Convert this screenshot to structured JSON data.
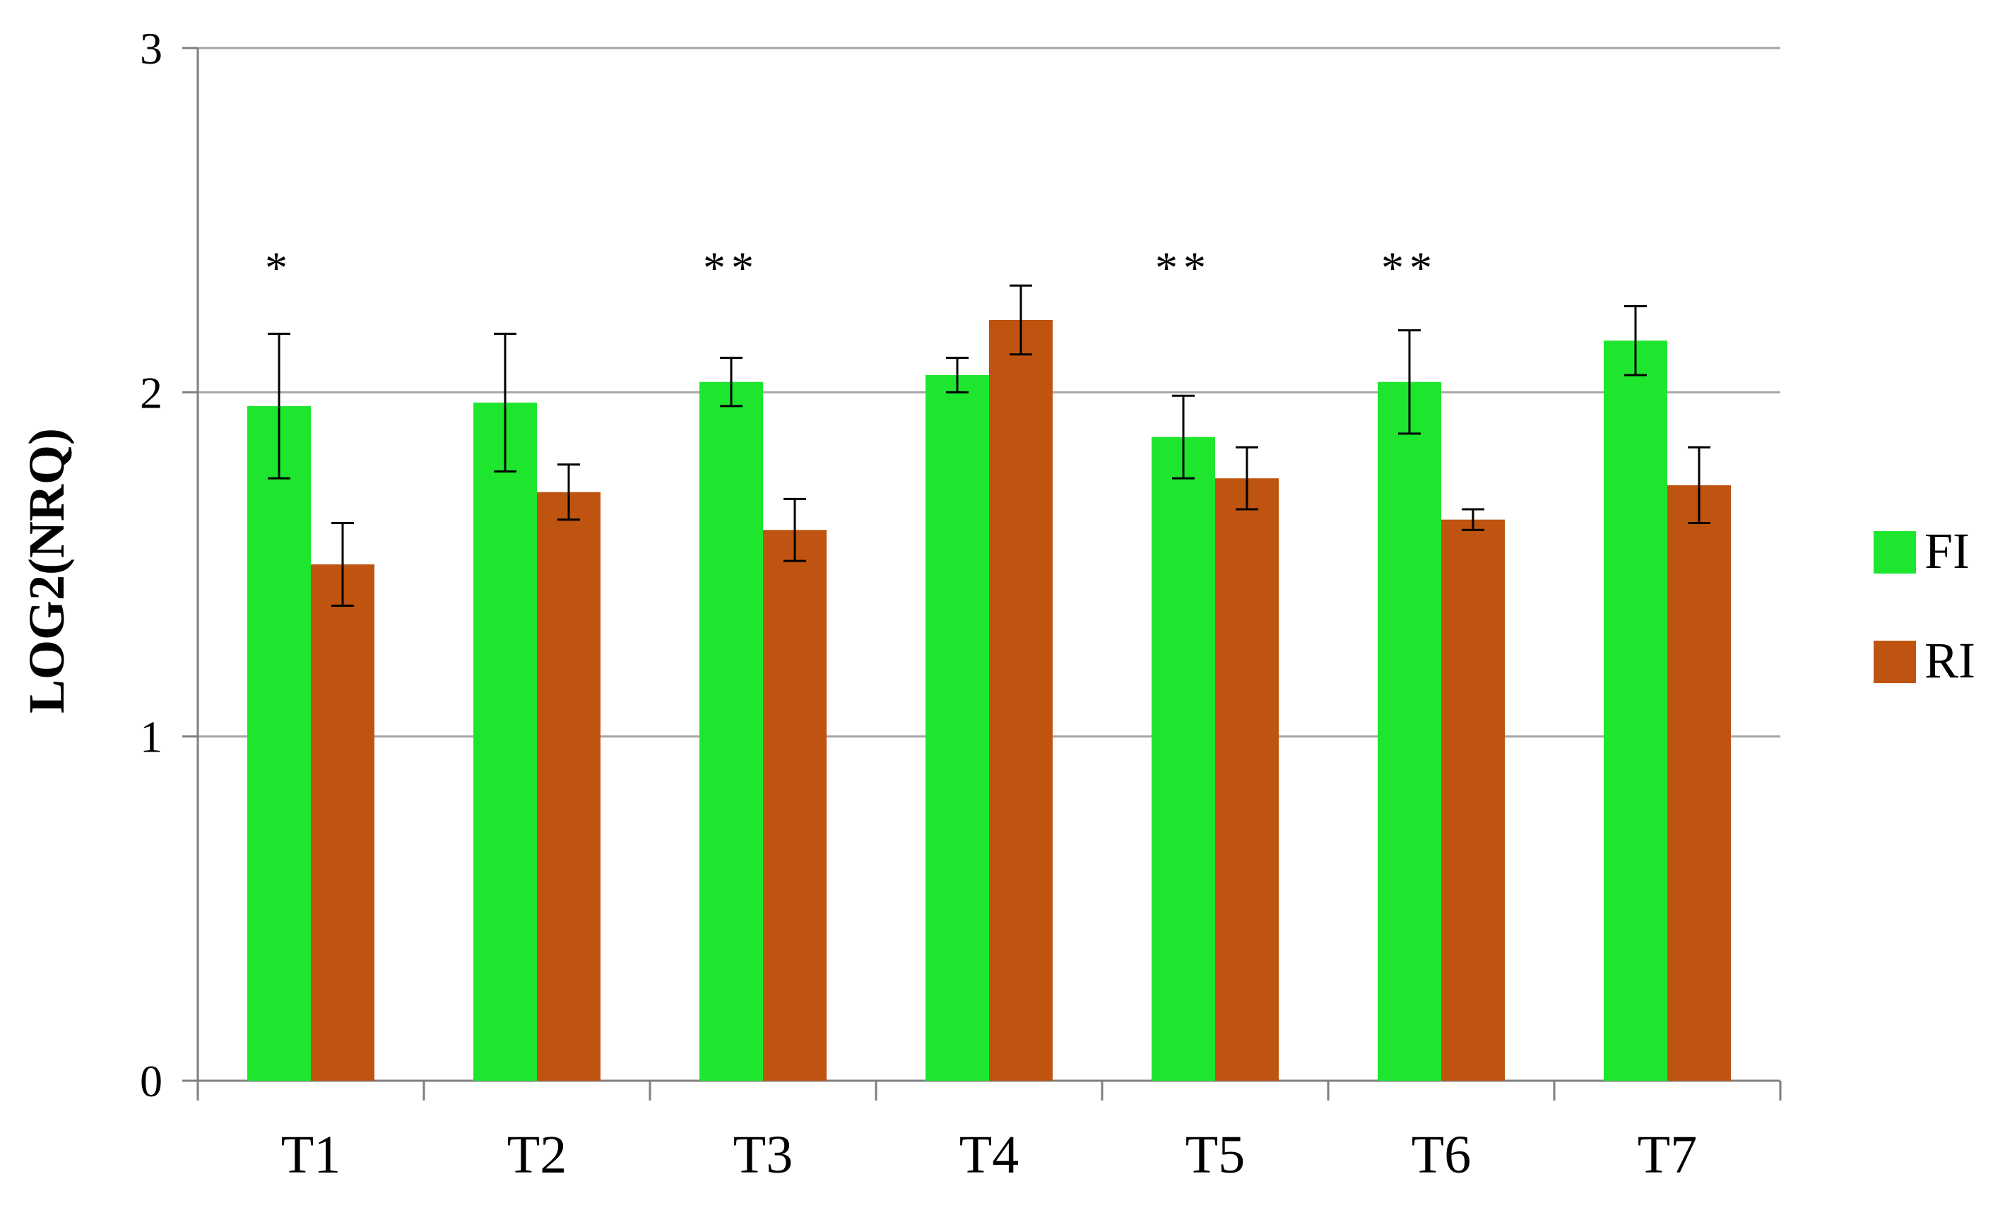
{
  "chart_data": {
    "type": "bar",
    "title": "",
    "xlabel": "",
    "ylabel": "LOG2(NRQ)",
    "ylim": [
      0,
      3
    ],
    "yticks": [
      0,
      1,
      2,
      3
    ],
    "grid": true,
    "legend_position": "right",
    "categories": [
      "T1",
      "T2",
      "T3",
      "T4",
      "T5",
      "T6",
      "T7"
    ],
    "series": [
      {
        "name": "FI",
        "color": "#1ee62e",
        "values": [
          1.96,
          1.97,
          2.03,
          2.05,
          1.87,
          2.03,
          2.15
        ],
        "errors": [
          0.21,
          0.2,
          0.07,
          0.05,
          0.12,
          0.15,
          0.1
        ]
      },
      {
        "name": "RI",
        "color": "#bf5410",
        "values": [
          1.5,
          1.71,
          1.6,
          2.21,
          1.75,
          1.63,
          1.73
        ],
        "errors": [
          0.12,
          0.08,
          0.09,
          0.1,
          0.09,
          0.03,
          0.11
        ]
      }
    ],
    "annotations": [
      "*",
      "",
      "**",
      "",
      "**",
      "**",
      ""
    ],
    "annotation_value": 2.4,
    "gridline_color": "#a6a6a6",
    "axis_color": "#7f7f7f"
  }
}
